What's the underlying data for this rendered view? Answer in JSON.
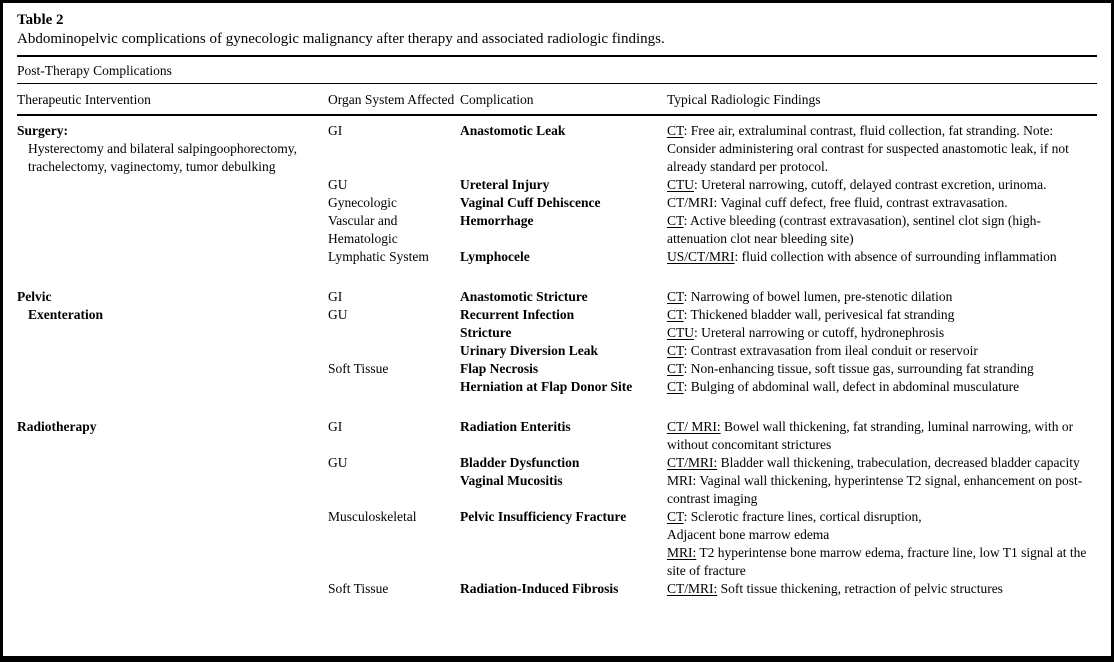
{
  "colors": {
    "text": "#000000",
    "background": "#ffffff",
    "rule": "#000000"
  },
  "table": {
    "label": "Table 2",
    "caption": "Abdominopelvic complications of gynecologic malignancy after therapy and associated radiologic findings.",
    "group_header": "Post-Therapy Complications",
    "columns": [
      "Therapeutic Intervention",
      "Organ System Affected",
      "Complication",
      "Typical Radiologic Findings"
    ],
    "sections": [
      {
        "intervention": {
          "lines": [
            {
              "text": "Surgery:",
              "bold": true,
              "indent": false
            },
            {
              "text": "Hysterectomy and bilateral salpingoophorectomy, trachelectomy, vaginectomy, tumor debulking",
              "bold": false,
              "indent": true
            }
          ]
        },
        "rows": [
          {
            "organ": "GI",
            "complication": "Anastomotic Leak",
            "findings": [
              {
                "label": "CT",
                "underline": true,
                "text": ": Free air, extraluminal contrast, fluid collection, fat stranding. Note: Consider administering oral contrast for suspected anastomotic leak, if not already standard per protocol."
              }
            ]
          },
          {
            "organ": "GU",
            "complication": "Ureteral Injury",
            "findings": [
              {
                "label": "CTU",
                "underline": true,
                "text": ": Ureteral narrowing, cutoff, delayed contrast excretion, urinoma."
              }
            ]
          },
          {
            "organ": "Gynecologic",
            "complication": "Vaginal Cuff Dehiscence",
            "findings": [
              {
                "label": "CT/MRI",
                "underline": false,
                "text": ": Vaginal cuff defect, free fluid, contrast extravasation."
              }
            ]
          },
          {
            "organ": "Vascular and Hematologic",
            "complication": "Hemorrhage",
            "findings": [
              {
                "label": "CT",
                "underline": true,
                "text": ": Active bleeding (contrast extravasation), sentinel clot sign (high-attenuation clot near bleeding site)"
              }
            ]
          },
          {
            "organ": "Lymphatic System",
            "complication": "Lymphocele",
            "findings": [
              {
                "label": "US/CT/MRI",
                "underline": true,
                "text": ": fluid collection with absence of surrounding inflammation"
              }
            ]
          }
        ]
      },
      {
        "intervention": {
          "lines": [
            {
              "text": "Pelvic",
              "bold": true,
              "indent": false
            },
            {
              "text": "Exenteration",
              "bold": true,
              "indent": true
            }
          ]
        },
        "rows": [
          {
            "organ": "GI",
            "complication": "Anastomotic Stricture",
            "findings": [
              {
                "label": "CT",
                "underline": true,
                "text": ": Narrowing of bowel lumen, pre-stenotic dilation"
              }
            ]
          },
          {
            "organ": "GU",
            "complication": "Recurrent Infection",
            "findings": [
              {
                "label": "CT",
                "underline": true,
                "text": ": Thickened bladder wall, perivesical fat stranding"
              }
            ]
          },
          {
            "organ": "",
            "complication": "Stricture",
            "findings": [
              {
                "label": "CTU",
                "underline": true,
                "text": ": Ureteral narrowing or cutoff, hydronephrosis"
              }
            ]
          },
          {
            "organ": "",
            "complication": "Urinary Diversion Leak",
            "findings": [
              {
                "label": "CT",
                "underline": true,
                "text": ": Contrast extravasation from ileal conduit or reservoir"
              }
            ]
          },
          {
            "organ": "Soft Tissue",
            "complication": "Flap Necrosis",
            "findings": [
              {
                "label": "CT",
                "underline": true,
                "text": ": Non-enhancing tissue, soft tissue gas, surrounding fat stranding"
              }
            ]
          },
          {
            "organ": "",
            "complication": "Herniation at Flap Donor Site",
            "findings": [
              {
                "label": "CT",
                "underline": true,
                "text": ": Bulging of abdominal wall, defect in abdominal musculature"
              }
            ]
          }
        ]
      },
      {
        "intervention": {
          "lines": [
            {
              "text": "Radiotherapy",
              "bold": true,
              "indent": false
            }
          ]
        },
        "rows": [
          {
            "organ": "GI",
            "complication": "Radiation Enteritis",
            "findings": [
              {
                "label": "CT/ MRI:",
                "underline": true,
                "text": " Bowel wall thickening, fat stranding, luminal narrowing, with or without concomitant strictures"
              }
            ]
          },
          {
            "organ": "GU",
            "complication": "Bladder Dysfunction",
            "findings": [
              {
                "label": "CT/MRI:",
                "underline": true,
                "text": " Bladder wall thickening, trabeculation, decreased bladder capacity"
              }
            ]
          },
          {
            "organ": "",
            "complication": "Vaginal Mucositis",
            "findings": [
              {
                "label": "MRI",
                "underline": false,
                "text": ": Vaginal wall thickening, hyperintense T2 signal, enhancement on post-contrast imaging"
              }
            ]
          },
          {
            "organ": "Musculoskeletal",
            "complication": "Pelvic Insufficiency Fracture",
            "findings": [
              {
                "label": "CT",
                "underline": true,
                "text": ": Sclerotic fracture lines, cortical disruption,"
              },
              {
                "label": "",
                "underline": false,
                "text": "Adjacent bone marrow edema"
              },
              {
                "label": "MRI:",
                "underline": true,
                "text": " T2 hyperintense bone marrow edema, fracture line, low T1 signal at the site of fracture"
              }
            ]
          },
          {
            "organ": "Soft Tissue",
            "complication": "Radiation-Induced Fibrosis",
            "findings": [
              {
                "label": "CT/MRI:",
                "underline": true,
                "text": " Soft tissue thickening, retraction of pelvic structures"
              }
            ]
          }
        ]
      }
    ]
  }
}
